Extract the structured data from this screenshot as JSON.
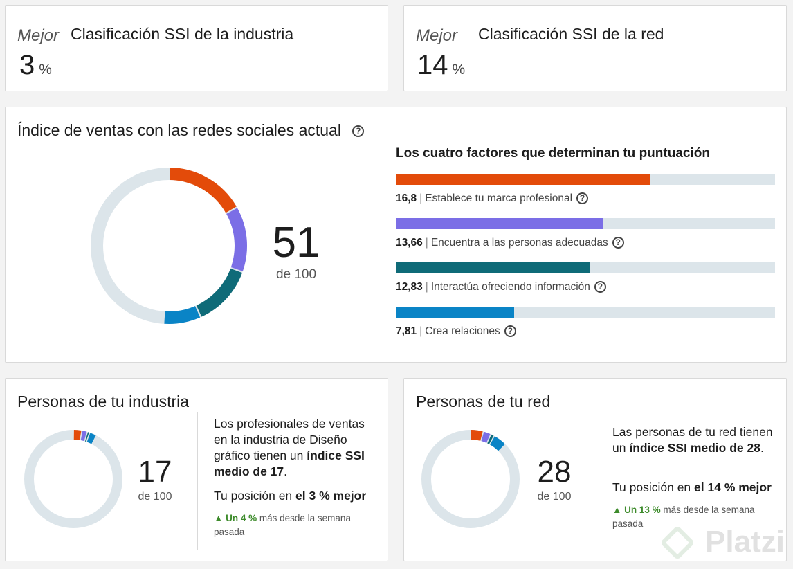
{
  "top_cards": [
    {
      "qualifier": "Mejor",
      "title": "Clasificación SSI de la industria",
      "value": "3",
      "unit": "%"
    },
    {
      "qualifier": "Mejor",
      "title": "Clasificación SSI de la red",
      "value": "14",
      "unit": "%"
    }
  ],
  "ssi": {
    "title": "Índice de ventas con las redes sociales actual",
    "help_glyph": "?",
    "score": "51",
    "out_of": "de 100",
    "factors_title": "Los cuatro factores que determinan tu puntuación",
    "factors": [
      {
        "value": "16,8",
        "label": "Establece tu marca profesional",
        "fraction": 0.672,
        "color": "#e34b0a"
      },
      {
        "value": "13,66",
        "label": "Encuentra a las personas adecuadas",
        "fraction": 0.546,
        "color": "#7b6ee6"
      },
      {
        "value": "12,83",
        "label": "Interactúa ofreciendo información",
        "fraction": 0.513,
        "color": "#0f6b78"
      },
      {
        "value": "7,81",
        "label": "Crea relaciones",
        "fraction": 0.312,
        "color": "#0a84c6"
      }
    ]
  },
  "industry": {
    "title": "Personas de tu industria",
    "score": "17",
    "out_of": "de 100",
    "desc_pre": "Los profesionales de ventas en la industria de Diseño gráfico tienen un ",
    "desc_bold": "índice SSI medio de 17",
    "desc_post": ".",
    "position_pre": "Tu posición en ",
    "position_bold": "el 3 % mejor",
    "trend_up": "▲ Un 4 %",
    "trend_rest": " más desde la semana pasada",
    "segments": [
      2.8,
      1.8,
      0.8,
      2.4
    ]
  },
  "network": {
    "title": "Personas de tu red",
    "score": "28",
    "out_of": "de 100",
    "desc_pre": "Las personas de tu red tienen un ",
    "desc_bold": "índice SSI medio de 28",
    "desc_post": ".",
    "position_pre": "Tu posición en ",
    "position_bold": "el 14 % mejor",
    "trend_up": "▲ Un 13 %",
    "trend_rest": " más desde la semana pasada",
    "segments": [
      4.2,
      2.6,
      1.2,
      4.6
    ]
  },
  "colors": {
    "brand": "#e34b0a",
    "purple": "#7b6ee6",
    "teal": "#0f6b78",
    "blue": "#0a84c6",
    "track": "#dce5ea",
    "up": "#3d8b2b"
  },
  "watermark": "Platzi"
}
